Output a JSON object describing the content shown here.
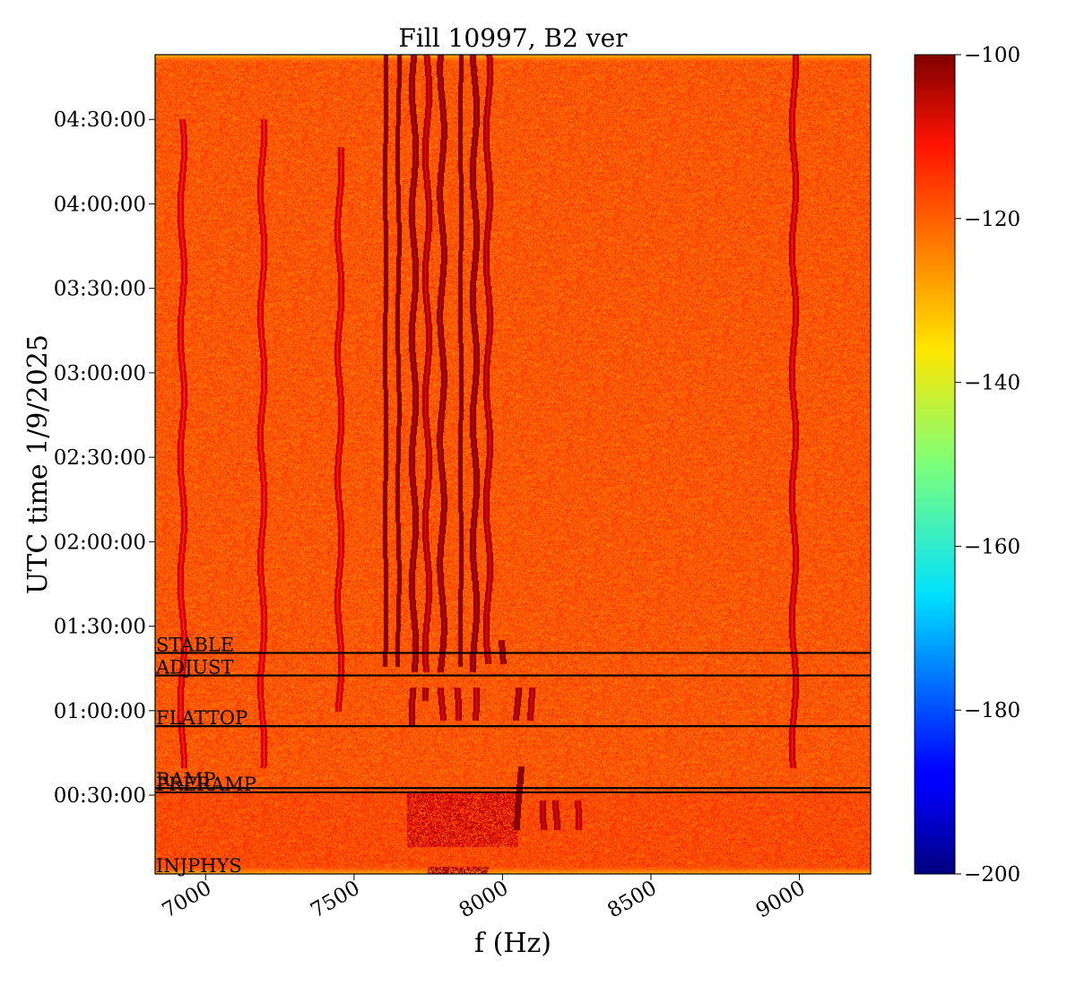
{
  "chart_data": {
    "type": "heatmap",
    "title": "Fill 10997, B2 ver",
    "xlabel": "f (Hz)",
    "ylabel": "UTC time 1/9/2025",
    "xlim": [
      6830,
      9240
    ],
    "ylim": [
      "00:02:00",
      "04:53:00"
    ],
    "x_ticks": [
      7000,
      7500,
      8000,
      8500,
      9000
    ],
    "y_ticks": [
      "00:30:00",
      "01:00:00",
      "01:30:00",
      "02:00:00",
      "02:30:00",
      "03:00:00",
      "03:30:00",
      "04:00:00",
      "04:30:00"
    ],
    "colorbar": {
      "colormap": "jet",
      "range": [
        -200,
        -100
      ],
      "ticks": [
        "−100",
        "−120",
        "−140",
        "−160",
        "−180",
        "−200"
      ]
    },
    "background_level": -121,
    "phases": [
      {
        "name": "INJPHYS",
        "time": "00:02:00"
      },
      {
        "name": "PRERAMP",
        "time": "00:31:00"
      },
      {
        "name": "RAMP",
        "time": "00:32:30"
      },
      {
        "name": "FLATTOP",
        "time": "00:54:30"
      },
      {
        "name": "ADJUST",
        "time": "01:12:30"
      },
      {
        "name": "STABLE",
        "time": "01:20:30"
      }
    ],
    "lines": [
      {
        "f": 7605,
        "from": "01:16:00",
        "to": "04:53:00",
        "level": -102
      },
      {
        "f": 7648,
        "from": "01:16:00",
        "to": "04:53:00",
        "level": -102
      },
      {
        "f": 7858,
        "from": "01:16:00",
        "to": "04:53:00",
        "level": -102
      },
      {
        "f": 7700,
        "from": "01:14:00",
        "to": "04:53:00",
        "level": -108
      },
      {
        "f": 7795,
        "from": "01:14:00",
        "to": "04:53:00",
        "level": -108
      },
      {
        "f": 7905,
        "from": "01:14:00",
        "to": "04:53:00",
        "level": -108
      },
      {
        "f": 7745,
        "from": "01:14:00",
        "to": "04:53:00",
        "level": -112
      },
      {
        "f": 7950,
        "from": "01:17:00",
        "to": "04:53:00",
        "level": -112
      },
      {
        "f": 7995,
        "from": "01:17:00",
        "to": "01:25:00",
        "level": -108
      },
      {
        "f": 7700,
        "from": "00:55:00",
        "to": "01:08:00",
        "level": -110
      },
      {
        "f": 7745,
        "from": "01:04:00",
        "to": "01:08:00",
        "level": -110
      },
      {
        "f": 7795,
        "from": "00:57:00",
        "to": "01:08:00",
        "level": -112
      },
      {
        "f": 7845,
        "from": "00:57:00",
        "to": "01:08:00",
        "level": -112
      },
      {
        "f": 7905,
        "from": "00:57:00",
        "to": "01:08:00",
        "level": -112
      },
      {
        "f": 8048,
        "from": "00:57:00",
        "to": "01:08:00",
        "level": -110
      },
      {
        "f": 8100,
        "from": "00:57:00",
        "to": "01:08:00",
        "level": -112
      },
      {
        "f": 8055,
        "from": "00:18:00",
        "to": "00:40:00",
        "level": -104
      },
      {
        "f": 8140,
        "from": "00:18:00",
        "to": "00:28:00",
        "level": -112
      },
      {
        "f": 8180,
        "from": "00:18:00",
        "to": "00:28:00",
        "level": -112
      },
      {
        "f": 8250,
        "from": "00:18:00",
        "to": "00:28:00",
        "level": -114
      },
      {
        "f": 8980,
        "from": "00:40:00",
        "to": "04:53:00",
        "level": -115
      },
      {
        "f": 7450,
        "from": "01:00:00",
        "to": "04:20:00",
        "level": -116
      },
      {
        "f": 6920,
        "from": "00:40:00",
        "to": "04:30:00",
        "level": -117
      },
      {
        "f": 7190,
        "from": "00:40:00",
        "to": "04:30:00",
        "level": -117
      }
    ],
    "broadband": [
      {
        "f_from": 7680,
        "f_to": 8050,
        "from": "00:12:00",
        "to": "00:31:00",
        "level": -108
      },
      {
        "f_from": 7750,
        "f_to": 7950,
        "from": "00:02:30",
        "to": "00:04:30",
        "level": -104
      }
    ]
  }
}
